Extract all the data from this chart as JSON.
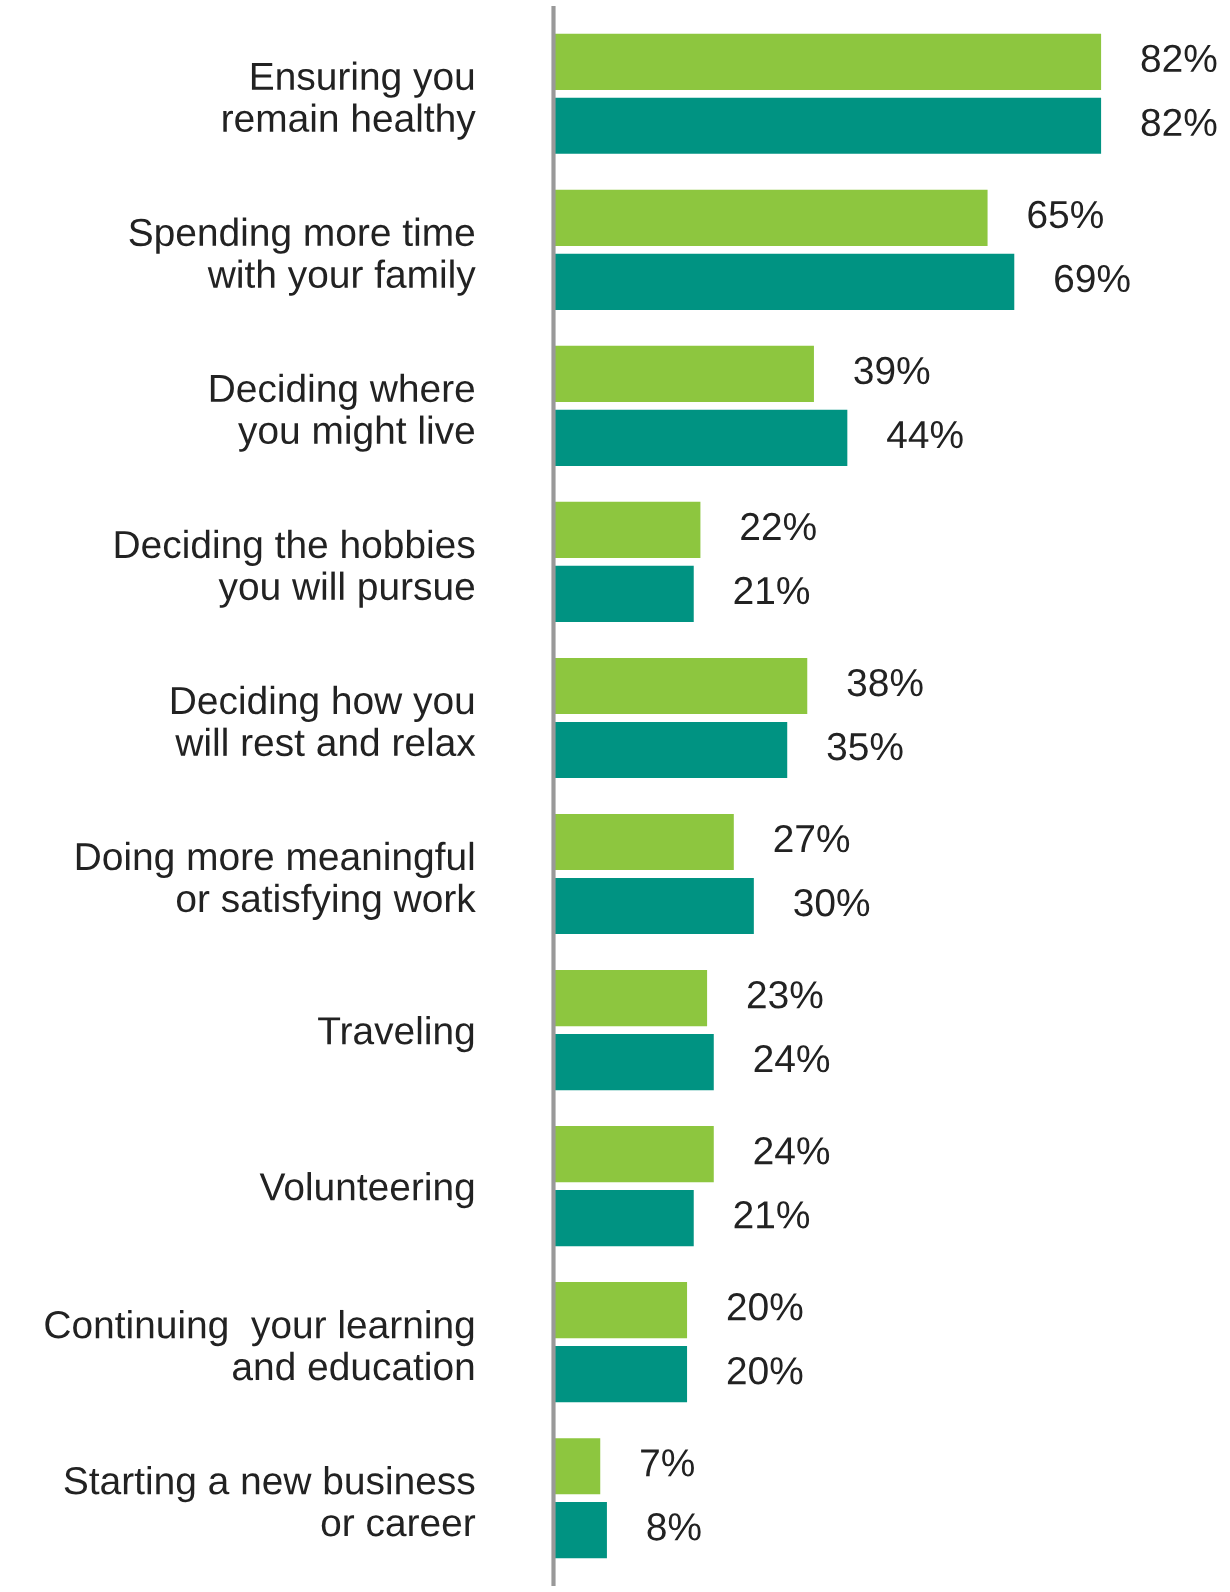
{
  "chart_data": {
    "type": "bar",
    "orientation": "horizontal",
    "categories": [
      "Ensuring you\nremain healthy",
      "Spending more time\nwith your family",
      "Deciding where\nyou might live",
      "Deciding the hobbies\nyou will pursue",
      "Deciding how you\nwill rest and relax",
      "Doing more meaningful\nor satisfying work",
      "Traveling",
      "Volunteering",
      "Continuing  your learning\nand education",
      "Starting a new business\nor career"
    ],
    "series": [
      {
        "color": "#8dc63f",
        "values": [
          82,
          65,
          39,
          22,
          38,
          27,
          23,
          24,
          20,
          7
        ],
        "value_labels": [
          "82%",
          "65%",
          "39%",
          "22%",
          "38%",
          "27%",
          "23%",
          "24%",
          "20%",
          "7%"
        ]
      },
      {
        "color": "#009382",
        "values": [
          82,
          69,
          44,
          21,
          35,
          30,
          24,
          21,
          20,
          8
        ],
        "value_labels": [
          "82%",
          "69%",
          "44%",
          "21%",
          "35%",
          "30%",
          "24%",
          "21%",
          "20%",
          "8%"
        ]
      }
    ],
    "tick_labels": "y",
    "grid": false,
    "legend": false
  }
}
